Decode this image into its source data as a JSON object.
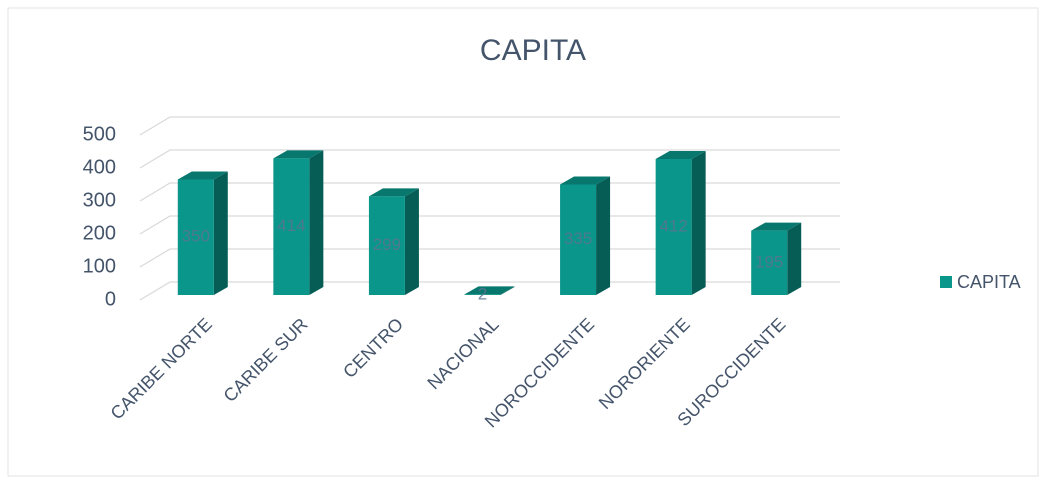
{
  "chart_data": {
    "type": "bar3d",
    "title": "CAPITA",
    "categories": [
      "CARIBE NORTE",
      "CARIBE SUR",
      "CENTRO",
      "NACIONAL",
      "NOROCCIDENTE",
      "NORORIENTE",
      "SUROCCIDENTE"
    ],
    "series": [
      {
        "name": "CAPITA",
        "color": "#0a968a",
        "values": [
          350,
          414,
          299,
          2,
          335,
          412,
          195
        ]
      }
    ],
    "ylim": [
      0,
      500
    ],
    "yticks": [
      0,
      100,
      200,
      300,
      400,
      500
    ],
    "grid": true,
    "legend": "right"
  }
}
